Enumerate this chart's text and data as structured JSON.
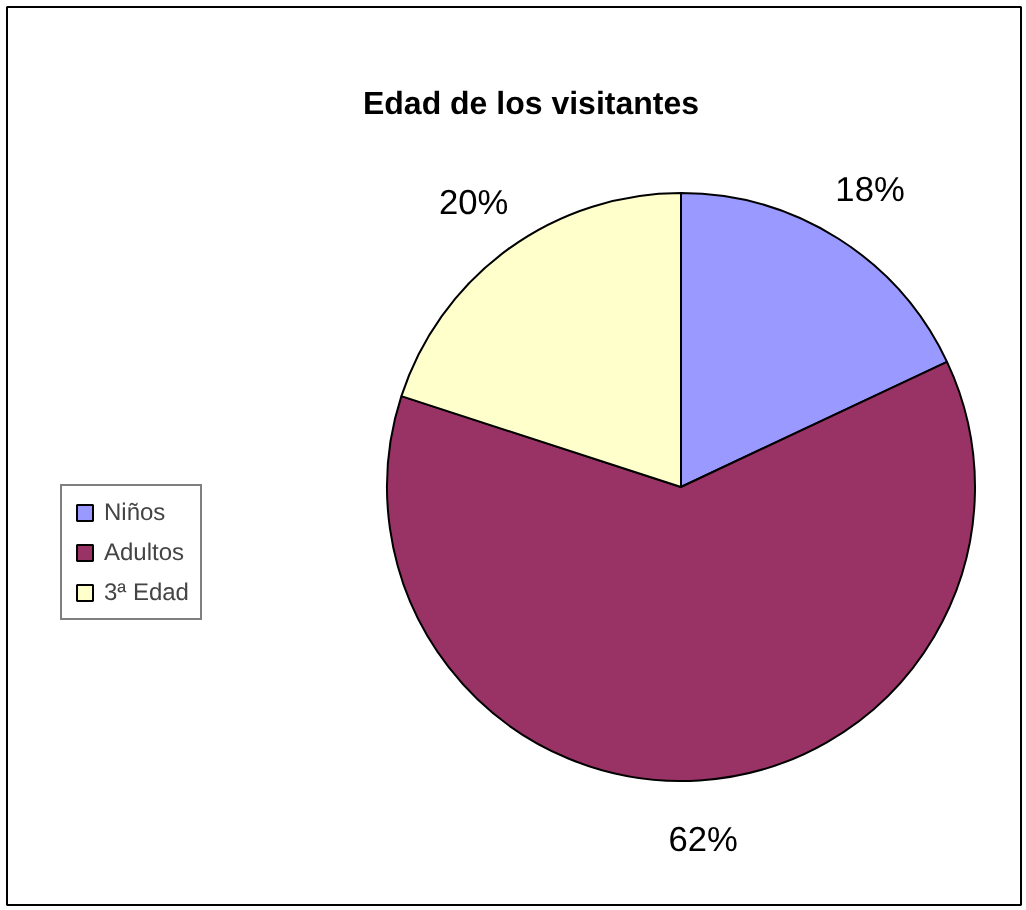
{
  "chart_data": {
    "type": "pie",
    "title": "Edad de los visitantes",
    "categories": [
      "Niños",
      "Adultos",
      "3ª Edad"
    ],
    "values": [
      18,
      62,
      20
    ],
    "colors": [
      "#9999ff",
      "#993366",
      "#ffffcc"
    ],
    "value_labels": [
      "18%",
      "62%",
      "20%"
    ],
    "legend": "left"
  }
}
